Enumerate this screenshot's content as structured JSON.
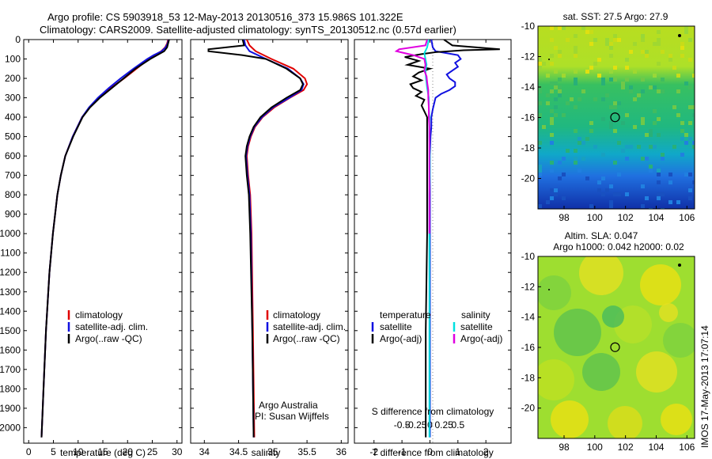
{
  "header": {
    "line1": "Argo profile: CS 5903918_53 12-May-2013 20130516_373 15.986S 101.322E",
    "line2": "Climatology: CARS2009. Satellite-adjusted climatology: synTS_20130512.nc (0.57d earlier)"
  },
  "colors": {
    "clim": "#e00000",
    "sat": "#1010e0",
    "argo": "#000000",
    "sal_sat": "#00e0e0",
    "sal_argo": "#e000e0"
  },
  "chart_data": [
    {
      "id": "temperature",
      "type": "line",
      "xlabel": "temperature (deg C)",
      "ylabel": "",
      "xlim": [
        -1,
        31
      ],
      "ylim": [
        0,
        2080
      ],
      "xticks": [
        0,
        5,
        10,
        15,
        20,
        25,
        30
      ],
      "yticks": [
        0,
        100,
        200,
        300,
        400,
        500,
        600,
        700,
        800,
        900,
        1000,
        1100,
        1200,
        1300,
        1400,
        1500,
        1600,
        1700,
        1800,
        1900,
        2000
      ],
      "legend": [
        "climatology",
        "satellite-adj. clim.",
        "Argo(..raw -QC)"
      ],
      "series": [
        {
          "name": "climatology",
          "color": "#e00000",
          "depth": [
            0,
            20,
            40,
            60,
            80,
            100,
            150,
            200,
            250,
            300,
            350,
            400,
            500,
            600,
            700,
            800,
            1000,
            1200,
            1500,
            1800,
            2050
          ],
          "values": [
            28.2,
            28.0,
            27.6,
            26.8,
            25.5,
            24.3,
            21.8,
            19.3,
            16.6,
            14.2,
            12.3,
            10.8,
            8.9,
            7.4,
            6.5,
            5.8,
            4.9,
            4.2,
            3.5,
            3.0,
            2.6
          ]
        },
        {
          "name": "satellite-adj. clim.",
          "color": "#1010e0",
          "depth": [
            0,
            20,
            40,
            60,
            80,
            100,
            150,
            200,
            250,
            300,
            350,
            400,
            500,
            600,
            700,
            800,
            1000,
            1200,
            1500,
            1800,
            2050
          ],
          "values": [
            28.3,
            28.1,
            27.7,
            26.9,
            25.3,
            24.0,
            21.2,
            18.6,
            16.2,
            14.0,
            12.2,
            10.8,
            8.9,
            7.4,
            6.5,
            5.8,
            4.9,
            4.2,
            3.5,
            3.0,
            2.6
          ]
        },
        {
          "name": "Argo(..raw -QC)",
          "color": "#000000",
          "depth": [
            0,
            20,
            40,
            60,
            80,
            100,
            150,
            200,
            250,
            300,
            350,
            400,
            500,
            600,
            700,
            800,
            1000,
            1200,
            1500,
            1800,
            2050
          ],
          "values": [
            28.4,
            28.2,
            28.0,
            27.4,
            26.0,
            24.6,
            21.6,
            19.2,
            16.8,
            14.4,
            12.4,
            10.9,
            9.0,
            7.4,
            6.5,
            5.8,
            4.9,
            4.2,
            3.5,
            3.0,
            2.6
          ]
        }
      ]
    },
    {
      "id": "salinity",
      "type": "line",
      "xlabel": "salinity",
      "xlim": [
        33.8,
        36.1
      ],
      "ylim": [
        0,
        2080
      ],
      "xticks": [
        34,
        34.5,
        35,
        35.5,
        36
      ],
      "legend": [
        "climatology",
        "satellite-adj. clim.",
        "Argo(..raw -QC)"
      ],
      "annotation": [
        "Argo Australia",
        "PI: Susan Wijffels"
      ],
      "series": [
        {
          "name": "climatology",
          "color": "#e00000",
          "depth": [
            0,
            30,
            60,
            100,
            150,
            200,
            230,
            260,
            300,
            350,
            400,
            450,
            500,
            550,
            600,
            700,
            800,
            1000,
            1500,
            2050
          ],
          "values": [
            34.62,
            34.66,
            34.75,
            34.98,
            35.3,
            35.47,
            35.5,
            35.45,
            35.25,
            35.02,
            34.85,
            34.74,
            34.68,
            34.64,
            34.62,
            34.64,
            34.67,
            34.69,
            34.71,
            34.73
          ]
        },
        {
          "name": "satellite-adj. clim.",
          "color": "#1010e0",
          "depth": [
            0,
            30,
            60,
            100,
            150,
            200,
            230,
            260,
            300,
            350,
            400,
            450,
            500,
            550,
            600,
            700,
            800,
            1000,
            1500,
            2050
          ],
          "values": [
            34.58,
            34.6,
            34.66,
            34.9,
            35.22,
            35.4,
            35.45,
            35.42,
            35.24,
            35.0,
            34.84,
            34.73,
            34.67,
            34.63,
            34.61,
            34.63,
            34.66,
            34.68,
            34.7,
            34.72
          ]
        },
        {
          "name": "Argo(..raw -QC)",
          "color": "#000000",
          "depth": [
            0,
            30,
            50,
            60,
            80,
            100,
            150,
            200,
            230,
            260,
            300,
            350,
            400,
            450,
            500,
            550,
            600,
            700,
            800,
            1000,
            1500,
            2050
          ],
          "values": [
            34.56,
            34.58,
            34.06,
            34.06,
            34.55,
            34.9,
            35.2,
            35.4,
            35.44,
            35.4,
            35.2,
            34.98,
            34.82,
            34.72,
            34.66,
            34.62,
            34.6,
            34.62,
            34.65,
            34.67,
            34.7,
            34.72
          ]
        }
      ]
    },
    {
      "id": "differences",
      "type": "line",
      "xlabel": "T difference from climatology",
      "xlabel2": "S difference from climatology",
      "xlim": [
        -2.7,
        2.9
      ],
      "ylim": [
        0,
        2080
      ],
      "xticks": [
        -2,
        -1,
        0,
        1,
        2
      ],
      "xticks2": [
        -0.5,
        -0.25,
        0,
        0.25,
        0.5
      ],
      "legend_t_title": "temperature",
      "legend_s_title": "salinity",
      "legend_t": [
        "satellite",
        "Argo(-adj)"
      ],
      "legend_s": [
        "satellite",
        "Argo(-adj)"
      ],
      "series": [
        {
          "name": "T satellite",
          "color": "#1010e0",
          "depth": [
            0,
            40,
            60,
            80,
            100,
            120,
            140,
            160,
            180,
            200,
            220,
            240,
            260,
            280,
            300,
            330,
            360,
            400,
            450,
            500,
            600,
            800,
            1000,
            1500,
            2050
          ],
          "values": [
            0.05,
            0.1,
            0.2,
            1.0,
            1.1,
            0.9,
            1.0,
            0.8,
            0.6,
            0.7,
            0.9,
            0.9,
            0.7,
            0.4,
            0.2,
            0.15,
            0.1,
            0.05,
            0.05,
            0.02,
            0.0,
            0.0,
            0.0,
            0.0,
            0.0
          ]
        },
        {
          "name": "T Argo(-adj)",
          "color": "#000000",
          "depth": [
            0,
            30,
            50,
            55,
            65,
            75,
            90,
            110,
            130,
            150,
            170,
            190,
            210,
            230,
            250,
            270,
            290,
            310,
            340,
            370,
            400,
            450,
            500,
            600,
            800,
            1000,
            1500,
            2050
          ],
          "values": [
            0.5,
            0.8,
            2.5,
            1.2,
            0.2,
            -0.3,
            -0.9,
            -0.4,
            -0.8,
            0.0,
            -0.4,
            -0.6,
            -0.3,
            -0.7,
            -0.6,
            -0.3,
            -0.5,
            -0.2,
            -0.3,
            -0.2,
            -0.1,
            -0.1,
            -0.1,
            -0.1,
            -0.1,
            -0.1,
            -0.15,
            -0.15
          ]
        },
        {
          "name": "S satellite",
          "color": "#00e0e0",
          "depth": [
            0,
            40,
            70,
            100,
            130,
            160,
            200,
            250,
            300,
            350,
            400,
            500,
            600,
            700,
            800,
            1000,
            1200,
            1500,
            1800,
            2050
          ],
          "values": [
            -0.02,
            -0.05,
            -0.1,
            -0.08,
            -0.06,
            -0.08,
            -0.07,
            -0.05,
            -0.02,
            -0.02,
            -0.01,
            -0.01,
            0.0,
            0.0,
            -0.01,
            -0.01,
            -0.01,
            -0.01,
            -0.01,
            -0.01
          ]
        },
        {
          "name": "S Argo(-adj)",
          "color": "#e000e0",
          "depth": [
            0,
            30,
            50,
            60,
            80,
            100,
            130,
            160,
            190,
            220,
            260,
            300,
            350,
            400,
            450,
            500,
            600,
            800,
            1000
          ],
          "values": [
            -0.05,
            -0.08,
            -0.55,
            -0.6,
            -0.3,
            -0.1,
            -0.08,
            -0.1,
            -0.06,
            -0.05,
            -0.03,
            -0.03,
            -0.02,
            -0.02,
            -0.01,
            -0.01,
            -0.01,
            -0.01,
            -0.01
          ]
        }
      ]
    },
    {
      "id": "sst_map",
      "type": "heatmap",
      "title": "sat. SST: 27.5 Argo: 27.9",
      "xlim": [
        96.3,
        106.5
      ],
      "ylim": [
        -22,
        -10
      ],
      "xticks": [
        98,
        100,
        102,
        104,
        106
      ],
      "yticks": [
        -10,
        -12,
        -14,
        -16,
        -18,
        -20
      ],
      "marker": {
        "lon": 101.322,
        "lat": -15.986
      }
    },
    {
      "id": "sla_map",
      "type": "heatmap",
      "title": "Altim. SLA: 0.047",
      "subtitle": "Argo h1000: 0.042 h2000: 0.02",
      "xlim": [
        96.3,
        106.5
      ],
      "ylim": [
        -22,
        -10
      ],
      "xticks": [
        98,
        100,
        102,
        104,
        106
      ],
      "yticks": [
        -10,
        -12,
        -14,
        -16,
        -18,
        -20
      ],
      "marker": {
        "lon": 101.322,
        "lat": -15.986
      }
    }
  ],
  "credit": "IMOS 17-May-2013 17:07:14"
}
